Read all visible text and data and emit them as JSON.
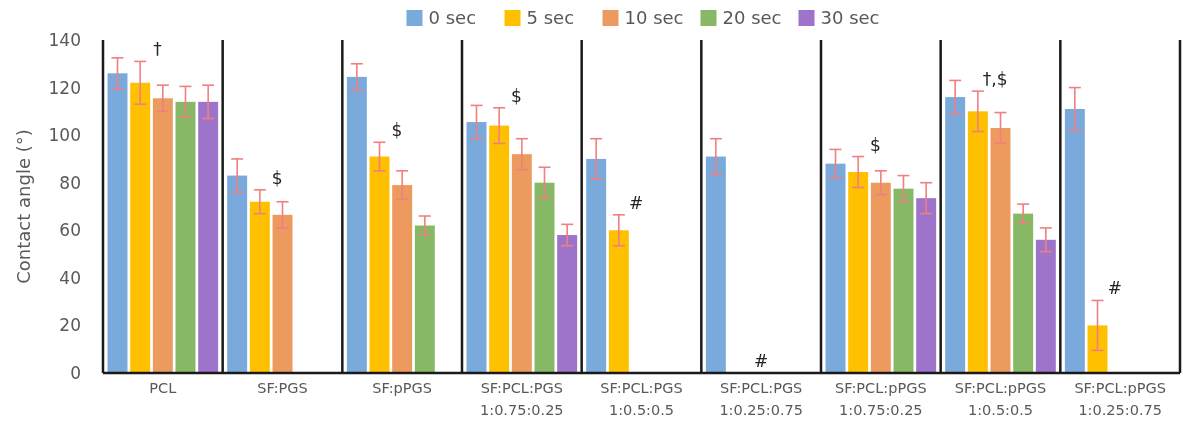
{
  "chart_data": {
    "type": "bar",
    "ylabel": "Contact angle (°)",
    "categories": [
      "PCL",
      "SF:PGS",
      "SF:pPGS",
      "SF:PCL:PGS\n1:0.75:0.25",
      "SF:PCL:PGS\n1:0.5:0.5",
      "SF:PCL:PGS\n1:0.25:0.75",
      "SF:PCL:pPGS\n1:0.75:0.25",
      "SF:PCL:pPGS\n1:0.5:0.5",
      "SF:PCL:pPGS\n1:0.25:0.75"
    ],
    "series": [
      {
        "name": "0 sec",
        "color": "#7aa9db",
        "values": [
          126,
          83,
          124.5,
          105.5,
          90,
          91,
          88,
          116,
          111
        ],
        "errors": [
          6.5,
          7,
          5.5,
          7,
          8.5,
          7.5,
          6,
          7,
          9
        ]
      },
      {
        "name": "5 sec",
        "color": "#ffc000",
        "values": [
          122,
          72,
          91,
          104,
          60,
          null,
          84.5,
          110,
          20
        ],
        "errors": [
          9,
          5,
          6,
          7.5,
          6.5,
          null,
          6.5,
          8.5,
          10.5
        ]
      },
      {
        "name": "10 sec",
        "color": "#ed9a5e",
        "values": [
          115.5,
          66.5,
          79,
          92,
          null,
          null,
          80,
          103,
          null
        ],
        "errors": [
          5.5,
          5.5,
          6,
          6.5,
          null,
          null,
          5,
          6.5,
          null
        ]
      },
      {
        "name": "20 sec",
        "color": "#86b866",
        "values": [
          114,
          null,
          62,
          80,
          null,
          null,
          77.5,
          67,
          null
        ],
        "errors": [
          6.5,
          null,
          4,
          6.5,
          null,
          null,
          5.5,
          4,
          null
        ]
      },
      {
        "name": "30 sec",
        "color": "#9d74c9",
        "values": [
          114,
          null,
          null,
          58,
          null,
          null,
          73.5,
          56,
          null
        ],
        "errors": [
          7,
          null,
          null,
          4.5,
          null,
          null,
          6.5,
          5,
          null
        ]
      }
    ],
    "ylim": [
      0,
      140
    ],
    "yticks": [
      0,
      20,
      40,
      60,
      80,
      100,
      120,
      140
    ],
    "grid": false,
    "legend": "top",
    "annotations": [
      "†",
      "$",
      "$",
      "$",
      "#",
      "#",
      "$",
      "†,$",
      "#"
    ]
  }
}
